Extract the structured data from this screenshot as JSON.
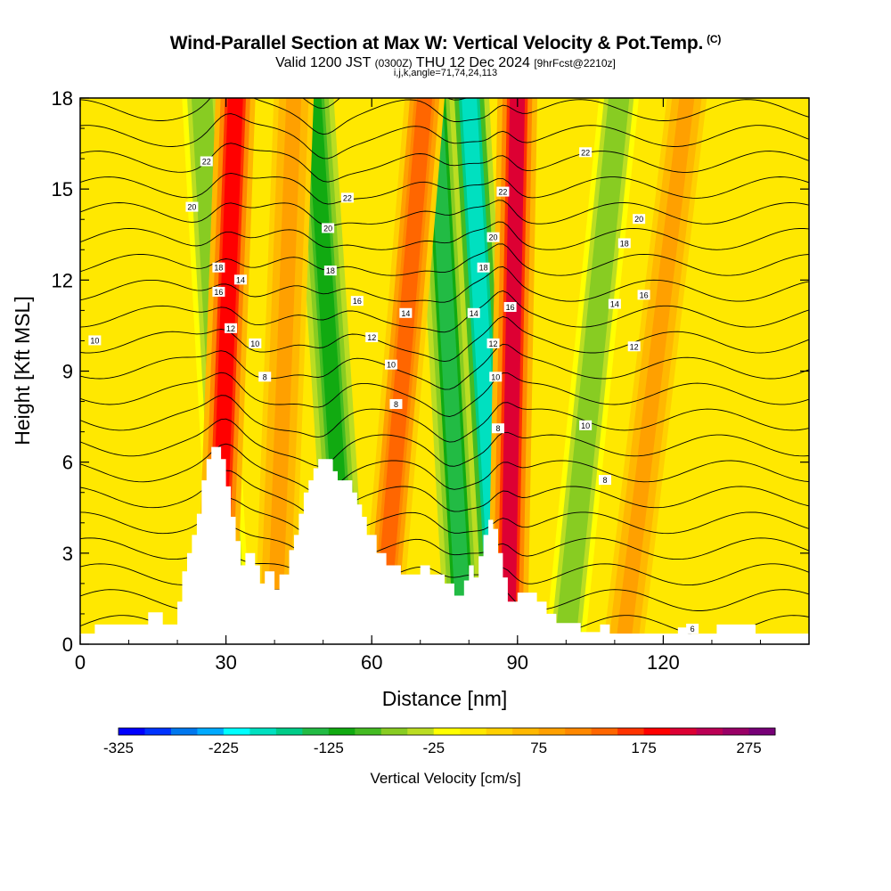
{
  "title": "Wind-Parallel Section at Max W: Vertical Velocity & Pot.Temp.",
  "copyright_mark": "(C)",
  "subtitle_main": "Valid 1200 JST",
  "subtitle_utc": "(0300Z)",
  "subtitle_date": "THU 12 Dec 2024",
  "subtitle_fcst": "[9hrFcst@2210z]",
  "params": "i,j,k,angle=71,74,24,113",
  "chart_data": {
    "type": "heatmap",
    "xlabel": "Distance [nm]",
    "ylabel": "Height [Kft MSL]",
    "xlim": [
      0,
      150
    ],
    "ylim": [
      0,
      18
    ],
    "xticks": [
      0,
      30,
      60,
      90,
      120
    ],
    "yticks": [
      0,
      3,
      6,
      9,
      12,
      15,
      18
    ],
    "colorbar": {
      "label": "Vertical Velocity [cm/s]",
      "range": [
        -325,
        300
      ],
      "step": 25,
      "tick_labels": [
        "-325",
        "-225",
        "-125",
        "-25",
        "75",
        "175",
        "275"
      ],
      "colors": [
        "#0000ff",
        "#0033ff",
        "#0077ee",
        "#00aaff",
        "#00ffff",
        "#00e0c0",
        "#00cc88",
        "#22bb44",
        "#11aa11",
        "#44bb22",
        "#88cc22",
        "#bbdd22",
        "#ffff00",
        "#ffe800",
        "#ffd000",
        "#ffb800",
        "#ffa000",
        "#ff8800",
        "#ff6600",
        "#ff3300",
        "#ff0000",
        "#dd0033",
        "#bb0055",
        "#990066",
        "#770077"
      ]
    },
    "terrain_profile": [
      [
        0,
        0.35
      ],
      [
        3,
        0.35
      ],
      [
        3,
        0.65
      ],
      [
        10,
        0.65
      ],
      [
        14,
        0.65
      ],
      [
        14,
        1.05
      ],
      [
        17,
        1.05
      ],
      [
        17,
        0.65
      ],
      [
        20,
        0.65
      ],
      [
        20,
        1.4
      ],
      [
        21,
        1.4
      ],
      [
        21,
        2.4
      ],
      [
        22,
        2.4
      ],
      [
        22,
        3.0
      ],
      [
        23,
        3.0
      ],
      [
        23,
        3.6
      ],
      [
        24,
        3.6
      ],
      [
        24,
        4.3
      ],
      [
        25,
        4.3
      ],
      [
        25,
        5.4
      ],
      [
        26,
        5.4
      ],
      [
        26,
        6.1
      ],
      [
        27,
        6.1
      ],
      [
        27,
        6.5
      ],
      [
        29,
        6.5
      ],
      [
        29,
        6.1
      ],
      [
        30,
        6.1
      ],
      [
        30,
        5.2
      ],
      [
        31,
        5.2
      ],
      [
        31,
        4.2
      ],
      [
        32,
        4.2
      ],
      [
        32,
        3.4
      ],
      [
        33,
        3.4
      ],
      [
        33,
        2.6
      ],
      [
        34,
        2.6
      ],
      [
        34,
        3.0
      ],
      [
        36,
        3.0
      ],
      [
        36,
        2.6
      ],
      [
        37,
        2.6
      ],
      [
        37,
        2.0
      ],
      [
        38,
        2.0
      ],
      [
        38,
        2.4
      ],
      [
        40,
        2.4
      ],
      [
        40,
        1.8
      ],
      [
        41,
        1.8
      ],
      [
        41,
        2.3
      ],
      [
        43,
        2.3
      ],
      [
        43,
        3.1
      ],
      [
        44,
        3.1
      ],
      [
        44,
        3.6
      ],
      [
        45,
        3.6
      ],
      [
        45,
        4.3
      ],
      [
        46,
        4.3
      ],
      [
        46,
        5.0
      ],
      [
        47,
        5.0
      ],
      [
        47,
        5.4
      ],
      [
        48,
        5.4
      ],
      [
        48,
        5.8
      ],
      [
        49,
        5.8
      ],
      [
        49,
        6.1
      ],
      [
        52,
        6.1
      ],
      [
        52,
        5.7
      ],
      [
        53,
        5.7
      ],
      [
        53,
        5.4
      ],
      [
        56,
        5.4
      ],
      [
        56,
        5.0
      ],
      [
        57,
        5.0
      ],
      [
        57,
        4.6
      ],
      [
        58,
        4.6
      ],
      [
        58,
        4.2
      ],
      [
        59,
        4.2
      ],
      [
        59,
        3.6
      ],
      [
        61,
        3.6
      ],
      [
        61,
        3.0
      ],
      [
        63,
        3.0
      ],
      [
        63,
        2.6
      ],
      [
        66,
        2.6
      ],
      [
        66,
        2.3
      ],
      [
        70,
        2.3
      ],
      [
        70,
        2.6
      ],
      [
        72,
        2.6
      ],
      [
        72,
        2.3
      ],
      [
        75,
        2.3
      ],
      [
        75,
        2.0
      ],
      [
        77,
        2.0
      ],
      [
        77,
        1.6
      ],
      [
        79,
        1.6
      ],
      [
        79,
        2.1
      ],
      [
        80,
        2.1
      ],
      [
        80,
        2.6
      ],
      [
        81,
        2.6
      ],
      [
        81,
        2.2
      ],
      [
        82,
        2.2
      ],
      [
        82,
        2.9
      ],
      [
        83,
        2.9
      ],
      [
        83,
        3.6
      ],
      [
        84,
        3.6
      ],
      [
        84,
        4.1
      ],
      [
        85,
        4.1
      ],
      [
        85,
        3.8
      ],
      [
        86,
        3.8
      ],
      [
        86,
        3.0
      ],
      [
        87,
        3.0
      ],
      [
        87,
        2.2
      ],
      [
        88,
        2.2
      ],
      [
        88,
        1.4
      ],
      [
        90,
        1.4
      ],
      [
        90,
        1.7
      ],
      [
        94,
        1.7
      ],
      [
        94,
        1.4
      ],
      [
        96,
        1.4
      ],
      [
        96,
        1.0
      ],
      [
        98,
        1.0
      ],
      [
        98,
        0.7
      ],
      [
        103,
        0.7
      ],
      [
        103,
        0.4
      ],
      [
        107,
        0.4
      ],
      [
        107,
        0.65
      ],
      [
        109,
        0.65
      ],
      [
        109,
        0.35
      ],
      [
        123,
        0.35
      ],
      [
        123,
        0.55
      ],
      [
        125,
        0.55
      ],
      [
        125,
        0.35
      ],
      [
        131,
        0.35
      ],
      [
        131,
        0.65
      ],
      [
        139,
        0.65
      ],
      [
        139,
        0.35
      ],
      [
        150,
        0.35
      ]
    ],
    "updraft_bands": [
      {
        "x_base": 28,
        "x_top": 32,
        "peak_cm_s": 175,
        "label": "updraft-band-1"
      },
      {
        "x_base": 40,
        "x_top": 44,
        "peak_cm_s": 75,
        "label": "updraft-band-2"
      },
      {
        "x_base": 62,
        "x_top": 71,
        "peak_cm_s": 125,
        "label": "updraft-band-3"
      },
      {
        "x_base": 88,
        "x_top": 90,
        "peak_cm_s": 200,
        "label": "updraft-band-4"
      },
      {
        "x_base": 112,
        "x_top": 125,
        "peak_cm_s": 75,
        "label": "updraft-band-5"
      }
    ],
    "downdraft_bands": [
      {
        "x_base": 31,
        "x_top": 25,
        "peak_cm_s": -75,
        "label": "downdraft-band-1"
      },
      {
        "x_base": 55,
        "x_top": 48,
        "peak_cm_s": -125,
        "label": "downdraft-band-2"
      },
      {
        "x_base": 79,
        "x_top": 73,
        "peak_cm_s": -150,
        "label": "downdraft-band-3"
      },
      {
        "x_base": 86,
        "x_top": 80,
        "peak_cm_s": -200,
        "label": "downdraft-band-4"
      },
      {
        "x_base": 100,
        "x_top": 111,
        "peak_cm_s": -75,
        "label": "downdraft-band-5"
      }
    ],
    "theta_contour_labels": [
      {
        "text": "10",
        "x": 3,
        "y": 10.0
      },
      {
        "text": "22",
        "x": 26,
        "y": 15.9
      },
      {
        "text": "20",
        "x": 23,
        "y": 14.4
      },
      {
        "text": "18",
        "x": 28.5,
        "y": 12.4
      },
      {
        "text": "16",
        "x": 28.5,
        "y": 11.6
      },
      {
        "text": "14",
        "x": 33,
        "y": 12.0
      },
      {
        "text": "12",
        "x": 31,
        "y": 10.4
      },
      {
        "text": "10",
        "x": 36,
        "y": 9.9
      },
      {
        "text": "8",
        "x": 38,
        "y": 8.8
      },
      {
        "text": "22",
        "x": 55,
        "y": 14.7
      },
      {
        "text": "20",
        "x": 51,
        "y": 13.7
      },
      {
        "text": "18",
        "x": 51.5,
        "y": 12.3
      },
      {
        "text": "16",
        "x": 57,
        "y": 11.3
      },
      {
        "text": "14",
        "x": 67,
        "y": 10.9
      },
      {
        "text": "12",
        "x": 60,
        "y": 10.1
      },
      {
        "text": "10",
        "x": 64,
        "y": 9.2
      },
      {
        "text": "8",
        "x": 65,
        "y": 7.9
      },
      {
        "text": "22",
        "x": 87,
        "y": 14.9
      },
      {
        "text": "20",
        "x": 85,
        "y": 13.4
      },
      {
        "text": "18",
        "x": 83,
        "y": 12.4
      },
      {
        "text": "16",
        "x": 88.5,
        "y": 11.1
      },
      {
        "text": "14",
        "x": 81,
        "y": 10.9
      },
      {
        "text": "12",
        "x": 85,
        "y": 9.9
      },
      {
        "text": "10",
        "x": 85.5,
        "y": 8.8
      },
      {
        "text": "8",
        "x": 86,
        "y": 7.1
      },
      {
        "text": "22",
        "x": 104,
        "y": 16.2
      },
      {
        "text": "20",
        "x": 115,
        "y": 14.0
      },
      {
        "text": "18",
        "x": 112,
        "y": 13.2
      },
      {
        "text": "16",
        "x": 116,
        "y": 11.5
      },
      {
        "text": "14",
        "x": 110,
        "y": 11.2
      },
      {
        "text": "12",
        "x": 114,
        "y": 9.8
      },
      {
        "text": "10",
        "x": 104,
        "y": 7.2
      },
      {
        "text": "8",
        "x": 108,
        "y": 5.4
      },
      {
        "text": "6",
        "x": 126,
        "y": 0.5
      }
    ]
  }
}
